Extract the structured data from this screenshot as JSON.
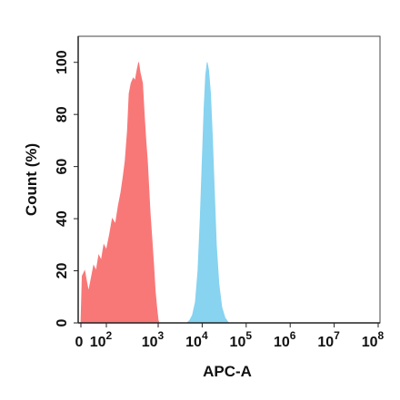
{
  "chart_data": {
    "type": "area",
    "xlabel": "APC-A",
    "ylabel": "Count  (%)",
    "x_scale": "biexponential",
    "ylim": [
      0,
      110
    ],
    "grid": false,
    "x_ticks": [
      {
        "value": 0,
        "base": "0",
        "exp": ""
      },
      {
        "value": 100,
        "base": "10",
        "exp": "2"
      },
      {
        "value": 1000,
        "base": "10",
        "exp": "3"
      },
      {
        "value": 10000,
        "base": "10",
        "exp": "4"
      },
      {
        "value": 100000,
        "base": "10",
        "exp": "5"
      },
      {
        "value": 1000000,
        "base": "10",
        "exp": "6"
      },
      {
        "value": 10000000,
        "base": "10",
        "exp": "7"
      },
      {
        "value": 100000000,
        "base": "10",
        "exp": "8"
      }
    ],
    "y_ticks": [
      0,
      20,
      40,
      60,
      80,
      100
    ],
    "series": [
      {
        "color": "#f87878",
        "points": [
          [
            0,
            0
          ],
          [
            5,
            18
          ],
          [
            15,
            20
          ],
          [
            22,
            16
          ],
          [
            30,
            12
          ],
          [
            40,
            17
          ],
          [
            50,
            22
          ],
          [
            60,
            20
          ],
          [
            70,
            26
          ],
          [
            80,
            24
          ],
          [
            90,
            30
          ],
          [
            100,
            28
          ],
          [
            115,
            34
          ],
          [
            130,
            40
          ],
          [
            150,
            38
          ],
          [
            170,
            45
          ],
          [
            190,
            50
          ],
          [
            210,
            56
          ],
          [
            230,
            62
          ],
          [
            255,
            74
          ],
          [
            275,
            88
          ],
          [
            300,
            92
          ],
          [
            330,
            94
          ],
          [
            360,
            93
          ],
          [
            390,
            97
          ],
          [
            420,
            100
          ],
          [
            450,
            96
          ],
          [
            500,
            92
          ],
          [
            540,
            80
          ],
          [
            580,
            70
          ],
          [
            620,
            62
          ],
          [
            660,
            52
          ],
          [
            700,
            42
          ],
          [
            760,
            32
          ],
          [
            820,
            22
          ],
          [
            880,
            12
          ],
          [
            950,
            5
          ],
          [
            1000,
            1
          ],
          [
            1050,
            0
          ]
        ]
      },
      {
        "color": "#87d3f0",
        "points": [
          [
            4500,
            0
          ],
          [
            5200,
            1
          ],
          [
            6000,
            3
          ],
          [
            7000,
            8
          ],
          [
            8000,
            20
          ],
          [
            9000,
            40
          ],
          [
            10000,
            62
          ],
          [
            11000,
            82
          ],
          [
            12000,
            95
          ],
          [
            13000,
            100
          ],
          [
            14000,
            97
          ],
          [
            15500,
            88
          ],
          [
            17000,
            72
          ],
          [
            19000,
            50
          ],
          [
            21000,
            30
          ],
          [
            24000,
            15
          ],
          [
            28000,
            6
          ],
          [
            33000,
            2
          ],
          [
            40000,
            0
          ]
        ]
      }
    ]
  }
}
